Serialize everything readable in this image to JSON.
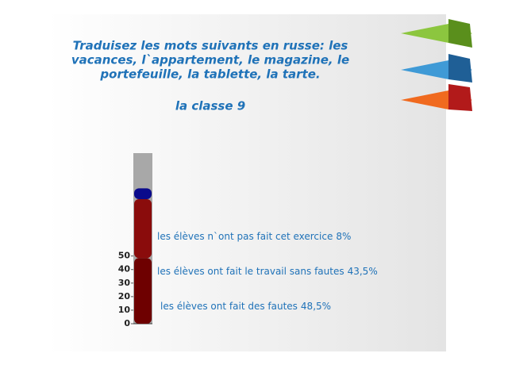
{
  "chart_data": {
    "type": "stacked-thermometer",
    "title": [
      "Traduisez les mots suivants en russe: les",
      "vacances, l`appartement,  le magazine, le",
      "portefeuille, la tablette, la tarte."
    ],
    "subtitle": "la classe 9",
    "categories": [
      "la classe 9"
    ],
    "series": [
      {
        "name": "les élèves ont fait des fautes",
        "color": "#6e0000",
        "values": [
          48.5
        ],
        "value_labels": [
          "48,5%"
        ]
      },
      {
        "name": "les élèves ont fait le travail sans fautes",
        "color": "#8a0c0c",
        "values": [
          43.5
        ],
        "value_labels": [
          "43,5%"
        ]
      },
      {
        "name": "les élèves n`ont pas fait cet exercice",
        "color": "#0a0a8c",
        "values": [
          8
        ],
        "value_labels": [
          "8%"
        ]
      }
    ],
    "ylim": [
      0,
      126
    ],
    "yticks": [
      0,
      10,
      20,
      30,
      40,
      50
    ]
  }
}
